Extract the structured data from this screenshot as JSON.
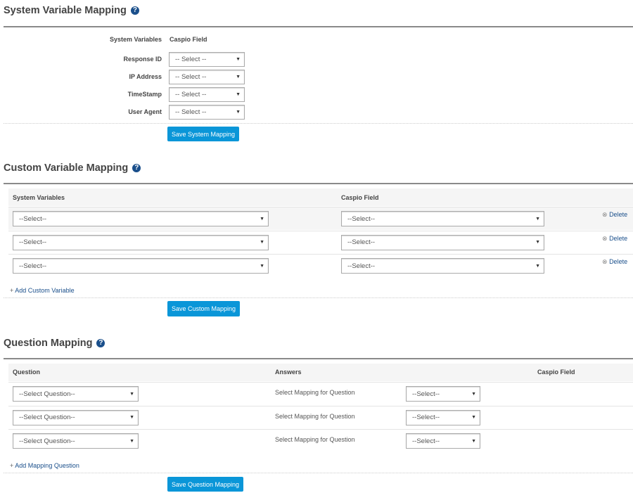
{
  "system": {
    "title": "System Variable Mapping",
    "col_vars": "System Variables",
    "col_field": "Caspio Field",
    "rows": [
      {
        "label": "Response ID",
        "value": "-- Select --"
      },
      {
        "label": "IP Address",
        "value": "-- Select --"
      },
      {
        "label": "TimeStamp",
        "value": "-- Select --"
      },
      {
        "label": "User Agent",
        "value": "-- Select --"
      }
    ],
    "save": "Save System Mapping"
  },
  "custom": {
    "title": "Custom Variable Mapping",
    "col_vars": "System Variables",
    "col_field": "Caspio Field",
    "rows": [
      {
        "var": "--Select--",
        "field": "--Select--",
        "delete": "Delete"
      },
      {
        "var": "--Select--",
        "field": "--Select--",
        "delete": "Delete"
      },
      {
        "var": "--Select--",
        "field": "--Select--",
        "delete": "Delete"
      }
    ],
    "add": "Add Custom Variable",
    "save": "Save Custom Mapping"
  },
  "question": {
    "title": "Question Mapping",
    "col_question": "Question",
    "col_answers": "Answers",
    "col_field": "Caspio Field",
    "rows": [
      {
        "question": "--Select Question--",
        "answers": "Select Mapping for Question",
        "field": "--Select--"
      },
      {
        "question": "--Select Question--",
        "answers": "Select Mapping for Question",
        "field": "--Select--"
      },
      {
        "question": "--Select Question--",
        "answers": "Select Mapping for Question",
        "field": "--Select--"
      }
    ],
    "add": "Add Mapping Question",
    "save": "Save Question Mapping"
  },
  "icons": {
    "help": "help-circle-icon",
    "dropdown": "triangle-down-icon",
    "delete": "circle-x-icon",
    "add": "plus-icon"
  },
  "colors": {
    "button": "#0a96d8",
    "link": "#1a4f8b",
    "help": "#1a4f8b"
  }
}
